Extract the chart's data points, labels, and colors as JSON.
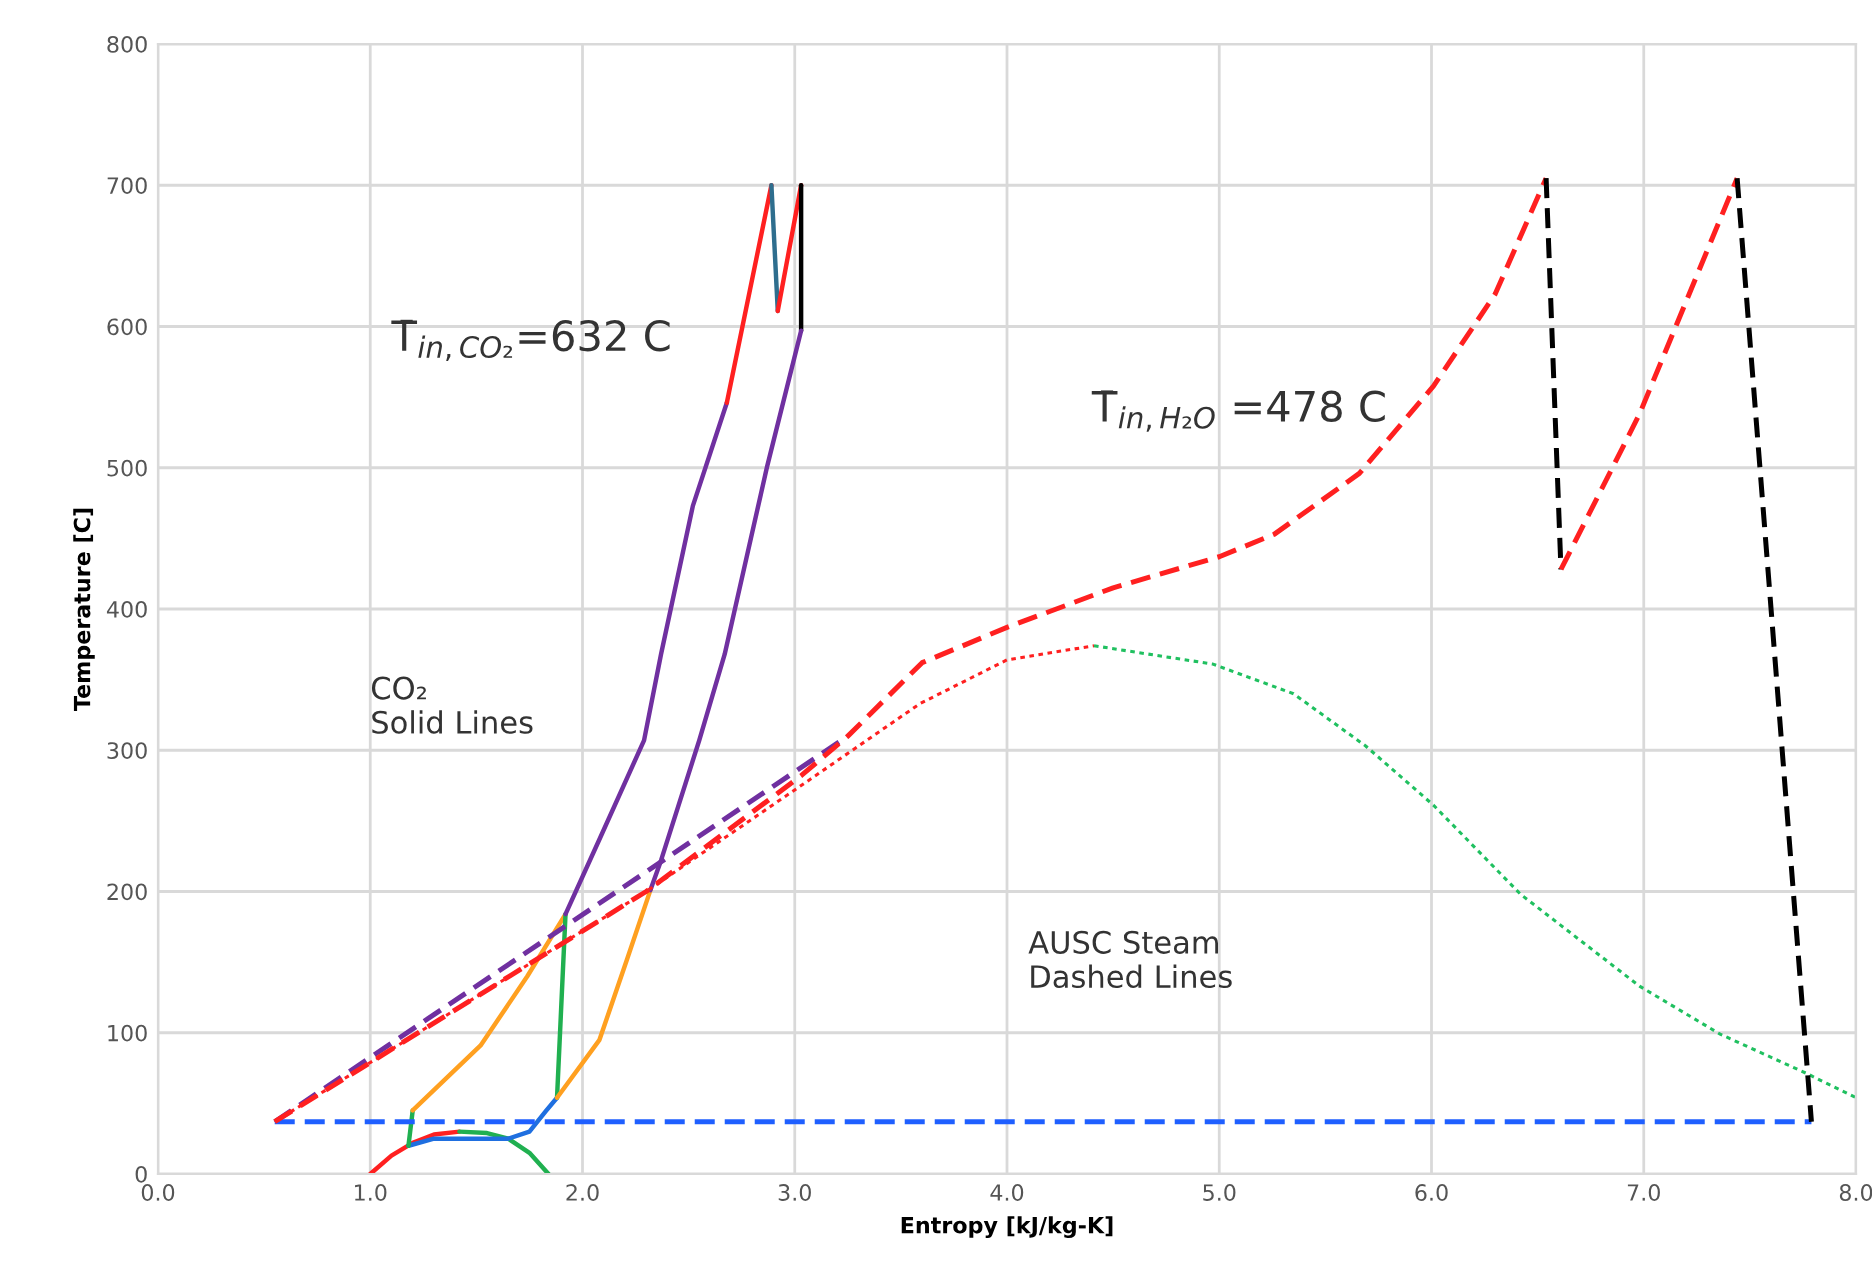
{
  "chart_data": {
    "type": "line",
    "xlabel": "Entropy [kJ/kg-K]",
    "ylabel": "Temperature [C]",
    "xlim": [
      0,
      8
    ],
    "ylim": [
      0,
      800
    ],
    "xticks": [
      {
        "value": 0,
        "label": "0.0"
      },
      {
        "value": 1,
        "label": "1.0"
      },
      {
        "value": 2,
        "label": "2.0"
      },
      {
        "value": 3,
        "label": "3.0"
      },
      {
        "value": 4,
        "label": "4.0"
      },
      {
        "value": 5,
        "label": "5.0"
      },
      {
        "value": 6,
        "label": "6.0"
      },
      {
        "value": 7,
        "label": "7.0"
      },
      {
        "value": 8,
        "label": "8.0"
      }
    ],
    "yticks": [
      0,
      100,
      200,
      300,
      400,
      500,
      600,
      700,
      800
    ],
    "grid": true,
    "annotations": [
      "T̄$_{in,CO₂}$=632 C",
      "T̄$_{in,H₂O}$ =478 C",
      "CO₂\nSolid Lines",
      "AUSC Steam\nDashed Lines"
    ],
    "series": [
      {
        "color": "#ff2020",
        "line_style": "solid",
        "x": [
          1.0,
          1.1,
          1.2,
          1.3,
          1.42
        ],
        "values": [
          0,
          13,
          22,
          28,
          30
        ]
      },
      {
        "color": "#20b050",
        "line_style": "solid",
        "x": [
          1.42,
          1.55,
          1.65,
          1.75,
          1.84
        ],
        "values": [
          30,
          29,
          25,
          15,
          0
        ]
      },
      {
        "color": "#1f6fe0",
        "line_style": "solid",
        "x": [
          1.18,
          1.3,
          1.5,
          1.65,
          1.75,
          1.83,
          1.88
        ],
        "values": [
          20,
          25,
          25,
          25,
          30,
          45,
          54
        ]
      },
      {
        "color": "#20b050",
        "line_style": "solid",
        "x": [
          1.18,
          1.2
        ],
        "values": [
          20,
          45
        ]
      },
      {
        "color": "#ffa020",
        "line_style": "solid",
        "x": [
          1.2,
          1.52,
          1.74,
          1.92
        ],
        "values": [
          45,
          91,
          140,
          184
        ]
      },
      {
        "color": "#20b050",
        "line_style": "solid",
        "x": [
          1.88,
          1.92
        ],
        "values": [
          54,
          184
        ]
      },
      {
        "color": "#ffa020",
        "line_style": "solid",
        "x": [
          1.88,
          2.08,
          2.21,
          2.32
        ],
        "values": [
          54,
          95,
          152,
          201
        ]
      },
      {
        "color": "#7030a0",
        "line_style": "solid",
        "x": [
          1.92,
          2.08,
          2.29,
          2.37,
          2.52,
          2.68
        ],
        "values": [
          184,
          237,
          307,
          368,
          473,
          546
        ]
      },
      {
        "color": "#ff2020",
        "line_style": "solid",
        "x": [
          2.68,
          2.89
        ],
        "values": [
          546,
          700
        ]
      },
      {
        "color": "#2e6e8e",
        "line_style": "solid",
        "x": [
          2.89,
          2.92
        ],
        "values": [
          700,
          611
        ]
      },
      {
        "color": "#ff2020",
        "line_style": "solid",
        "x": [
          2.92,
          3.03
        ],
        "values": [
          611,
          700
        ]
      },
      {
        "color": "#000000",
        "line_style": "solid",
        "x": [
          3.03,
          3.03
        ],
        "values": [
          700,
          597
        ]
      },
      {
        "color": "#7030a0",
        "line_style": "solid",
        "x": [
          3.03,
          2.87,
          2.67,
          2.55,
          2.37,
          2.32
        ],
        "values": [
          597,
          501,
          368,
          307,
          222,
          201
        ]
      },
      {
        "color": "#7030a0",
        "line_style": "dashed",
        "x": [
          0.55,
          3.25
        ],
        "values": [
          37,
          310
        ]
      },
      {
        "color": "#ff2020",
        "line_style": "dotted",
        "x": [
          0.55,
          2.3,
          3.03,
          3.59,
          4.0,
          4.41
        ],
        "values": [
          37,
          200,
          275,
          333,
          364,
          374
        ]
      },
      {
        "color": "#20c060",
        "line_style": "dotted",
        "x": [
          4.41,
          4.97,
          5.35,
          5.69,
          6.01,
          6.42,
          6.98,
          7.36,
          7.77,
          8.0
        ],
        "values": [
          374,
          361,
          340,
          303,
          261,
          198,
          133,
          99,
          71,
          54
        ]
      },
      {
        "color": "#1f5fff",
        "line_style": "dashed",
        "x": [
          0.55,
          7.79
        ],
        "values": [
          37,
          37
        ]
      },
      {
        "color": "#ff2020",
        "line_style": "dashed",
        "x": [
          0.55,
          2.3,
          3.03,
          3.25,
          3.6,
          4.0,
          4.5,
          5.0,
          5.26,
          5.66,
          6.01,
          6.3,
          6.54
        ],
        "values": [
          37,
          200,
          282,
          310,
          362,
          387,
          415,
          437,
          453,
          496,
          558,
          623,
          705
        ]
      },
      {
        "color": "#000000",
        "line_style": "dashed",
        "x": [
          6.54,
          6.61
        ],
        "values": [
          705,
          428
        ]
      },
      {
        "color": "#ff2020",
        "line_style": "dashed",
        "x": [
          6.61,
          6.98,
          7.44
        ],
        "values": [
          428,
          538,
          705
        ]
      },
      {
        "color": "#000000",
        "line_style": "dashed",
        "x": [
          7.44,
          7.79
        ],
        "values": [
          705,
          37
        ]
      }
    ]
  }
}
